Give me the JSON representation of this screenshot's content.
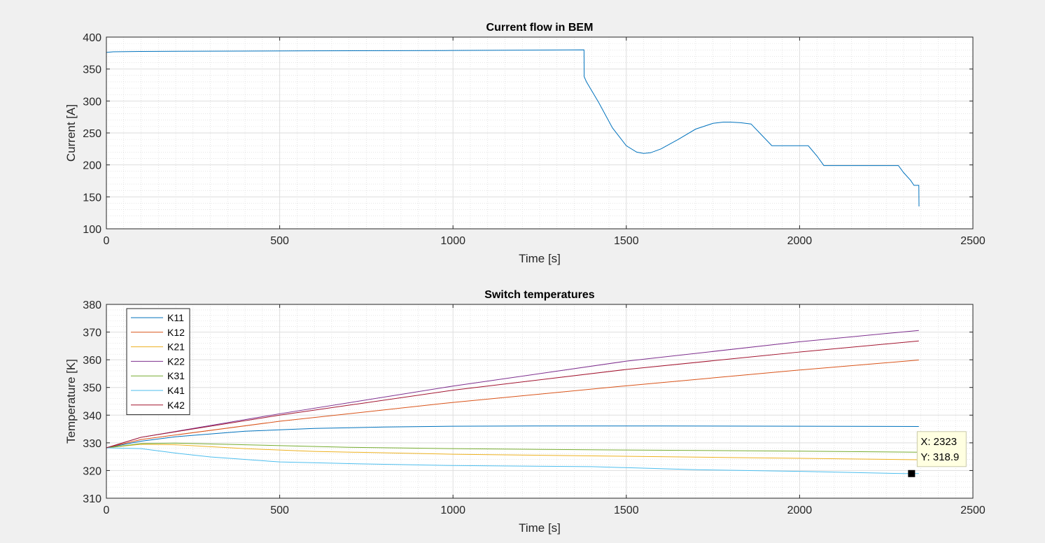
{
  "chart_data": [
    {
      "type": "line",
      "title": "Current flow in BEM",
      "xlabel": "Time [s]",
      "ylabel": "Current [A]",
      "xlim": [
        0,
        2500
      ],
      "ylim": [
        100,
        400
      ],
      "xticks": [
        0,
        500,
        1000,
        1500,
        2000,
        2500
      ],
      "yticks": [
        100,
        150,
        200,
        250,
        300,
        350,
        400
      ],
      "grid": "on (major and minor)",
      "legend": "none",
      "series": [
        {
          "color": "#0072BD",
          "x": [
            0,
            20,
            100,
            300,
            600,
            1000,
            1378,
            1378.5,
            1385,
            1420,
            1460,
            1500,
            1530,
            1550,
            1570,
            1600,
            1650,
            1700,
            1750,
            1780,
            1800,
            1830,
            1860,
            1890,
            1920,
            2000,
            2025,
            2050,
            2070,
            2100,
            2200,
            2285,
            2300,
            2320,
            2330,
            2344,
            2344.5
          ],
          "y": [
            376,
            377,
            377.5,
            378,
            378.5,
            379,
            380,
            338,
            330,
            298,
            258,
            230,
            220,
            218,
            219,
            225,
            240,
            256,
            265,
            267,
            267,
            266,
            264,
            247,
            230,
            230,
            230,
            214,
            199,
            199,
            199,
            199,
            188,
            176,
            168,
            168,
            135
          ]
        }
      ]
    },
    {
      "type": "line",
      "title": "Switch temperatures",
      "xlabel": "Time [s]",
      "ylabel": "Temperature [K]",
      "xlim": [
        0,
        2500
      ],
      "ylim": [
        310,
        380
      ],
      "xticks": [
        0,
        500,
        1000,
        1500,
        2000,
        2500
      ],
      "yticks": [
        310,
        320,
        330,
        340,
        350,
        360,
        370,
        380
      ],
      "grid": "on (major and minor)",
      "legend": "top-left",
      "series": [
        {
          "name": "K11",
          "color": "#0072BD",
          "x": [
            0,
            100,
            200,
            400,
            600,
            800,
            1000,
            1300,
            1600,
            2000,
            2344
          ],
          "y": [
            328.2,
            330.6,
            332.2,
            334.2,
            335.2,
            335.7,
            336.0,
            336.1,
            336.1,
            336.0,
            335.9
          ]
        },
        {
          "name": "K12",
          "color": "#D95319",
          "x": [
            0,
            100,
            500,
            1000,
            1500,
            2000,
            2344
          ],
          "y": [
            328.2,
            331.2,
            337.8,
            344.6,
            350.6,
            356.3,
            359.9
          ]
        },
        {
          "name": "K21",
          "color": "#EDB120",
          "x": [
            0,
            100,
            200,
            400,
            600,
            1000,
            1400,
            1800,
            2344
          ],
          "y": [
            328.2,
            329.5,
            329.3,
            327.9,
            326.9,
            325.9,
            325.3,
            324.7,
            323.9
          ]
        },
        {
          "name": "K22",
          "color": "#7E2F8E",
          "x": [
            0,
            100,
            500,
            1000,
            1500,
            2000,
            2344
          ],
          "y": [
            328.2,
            332.0,
            340.5,
            350.5,
            359.5,
            366.5,
            370.6
          ]
        },
        {
          "name": "K31",
          "color": "#77AC30",
          "x": [
            0,
            100,
            200,
            400,
            700,
            1000,
            1500,
            2000,
            2344
          ],
          "y": [
            328.2,
            329.7,
            329.9,
            329.3,
            328.4,
            327.9,
            327.4,
            327.0,
            326.6
          ]
        },
        {
          "name": "K41",
          "color": "#4DBEEE",
          "x": [
            0,
            100,
            200,
            300,
            500,
            700,
            1000,
            1400,
            1700,
            2000,
            2300,
            2344
          ],
          "y": [
            328.2,
            327.9,
            326.3,
            324.9,
            323.1,
            322.5,
            321.8,
            321.4,
            320.3,
            319.7,
            318.9,
            318.9
          ]
        },
        {
          "name": "K42",
          "color": "#A2142F",
          "x": [
            0,
            100,
            500,
            1000,
            1500,
            2000,
            2344
          ],
          "y": [
            328.2,
            332.0,
            340.0,
            349.0,
            356.5,
            362.8,
            366.8
          ]
        }
      ],
      "annotations": [
        {
          "type": "datatip",
          "x": 2323,
          "y": 318.9,
          "x_label": "X: 2323",
          "y_label": "Y: 318.9"
        }
      ]
    }
  ]
}
